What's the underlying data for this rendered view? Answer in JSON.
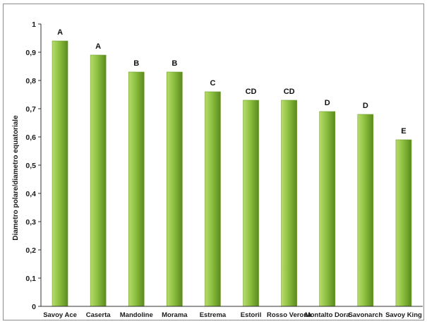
{
  "chart_data": {
    "type": "bar",
    "title": "",
    "xlabel": "",
    "ylabel": "Diametro polare/diametro equatoriale",
    "ylim": [
      0,
      1
    ],
    "yticks": [
      0,
      0.1,
      0.2,
      0.3,
      0.4,
      0.5,
      0.6,
      0.7,
      0.8,
      0.9,
      1
    ],
    "ytick_labels": [
      "0",
      "0,1",
      "0,2",
      "0,3",
      "0,4",
      "0,5",
      "0,6",
      "0,7",
      "0,8",
      "0,9",
      "1"
    ],
    "grid": false,
    "legend": "none",
    "categories": [
      "Savoy Ace",
      "Caserta",
      "Mandoline",
      "Morama",
      "Estrema",
      "Estoril",
      "Rosso Verona",
      "Montalto Dora",
      "Savonarch",
      "Savoy King"
    ],
    "values": [
      0.94,
      0.89,
      0.83,
      0.83,
      0.76,
      0.73,
      0.73,
      0.69,
      0.68,
      0.59
    ],
    "data_labels": [
      "A",
      "A",
      "B",
      "B",
      "C",
      "CD",
      "CD",
      "D",
      "D",
      "E"
    ],
    "colors": {
      "bar_light": "#b8dc6c",
      "bar_mid": "#8cbf3f",
      "bar_dark": "#5a8a1e"
    }
  }
}
